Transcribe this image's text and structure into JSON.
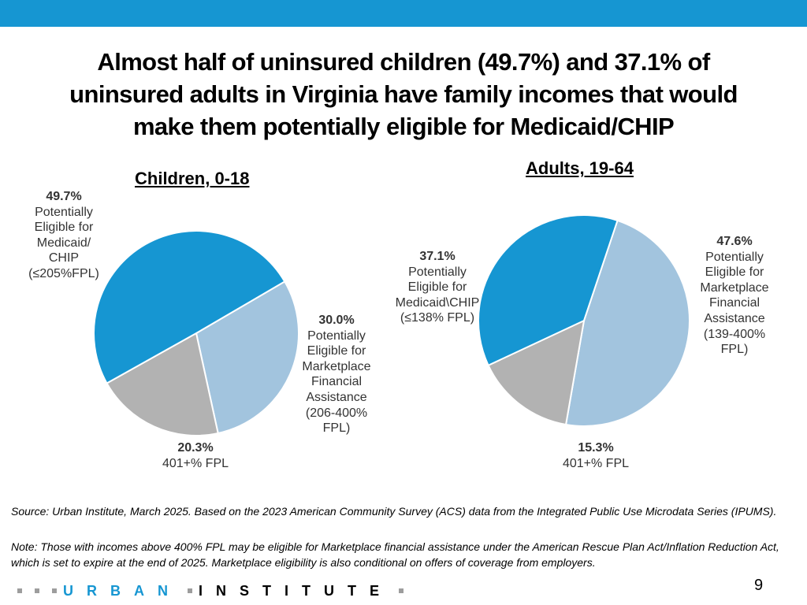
{
  "header": {
    "title_lines": [
      "Almost half of uninsured children (49.7%) and 37.1% of",
      "uninsured adults in Virginia have family incomes that would",
      "make them potentially eligible for Medicaid/CHIP"
    ]
  },
  "colors": {
    "topbar": "#1696d2",
    "medicaid": "#1696d2",
    "marketplace": "#a2c4de",
    "high_income": "#b2b2b2"
  },
  "chart_data": [
    {
      "type": "pie",
      "title": "Children, 0-18",
      "slices": [
        {
          "name": "medicaid",
          "value": 49.7,
          "pct": "49.7%",
          "lines": [
            "Potentially",
            "Eligible for",
            "Medicaid/",
            "CHIP",
            "(≤205%FPL)"
          ]
        },
        {
          "name": "marketplace",
          "value": 30.0,
          "pct": "30.0%",
          "lines": [
            "Potentially",
            "Eligible for",
            "Marketplace",
            "Financial",
            "Assistance",
            "(206-400%",
            "FPL)"
          ]
        },
        {
          "name": "high-income",
          "value": 20.3,
          "pct": "20.3%",
          "lines": [
            "401+% FPL"
          ]
        }
      ]
    },
    {
      "type": "pie",
      "title": "Adults, 19-64",
      "slices": [
        {
          "name": "medicaid",
          "value": 37.1,
          "pct": "37.1%",
          "lines": [
            "Potentially",
            "Eligible for",
            "Medicaid\\CHIP",
            "(≤138% FPL)"
          ]
        },
        {
          "name": "marketplace",
          "value": 47.6,
          "pct": "47.6%",
          "lines": [
            "Potentially",
            "Eligible for",
            "Marketplace",
            "Financial",
            "Assistance",
            "(139-400%",
            "FPL)"
          ]
        },
        {
          "name": "high-income",
          "value": 15.3,
          "pct": "15.3%",
          "lines": [
            "401+% FPL"
          ]
        }
      ]
    }
  ],
  "footer": {
    "source": "Source: Urban Institute, March 2025. Based on the 2023 American Community Survey (ACS) data from the Integrated Public Use Microdata Series (IPUMS).",
    "note": "Note: Those with incomes above 400% FPL may be eligible for Marketplace financial assistance under the American Rescue Plan Act/Inflation Reduction Act, which is set to expire at the end of 2025. Marketplace eligibility is also conditional on offers of coverage from employers.",
    "logo_first": "URBAN",
    "logo_second": "INSTITUTE",
    "page_number": "9"
  }
}
